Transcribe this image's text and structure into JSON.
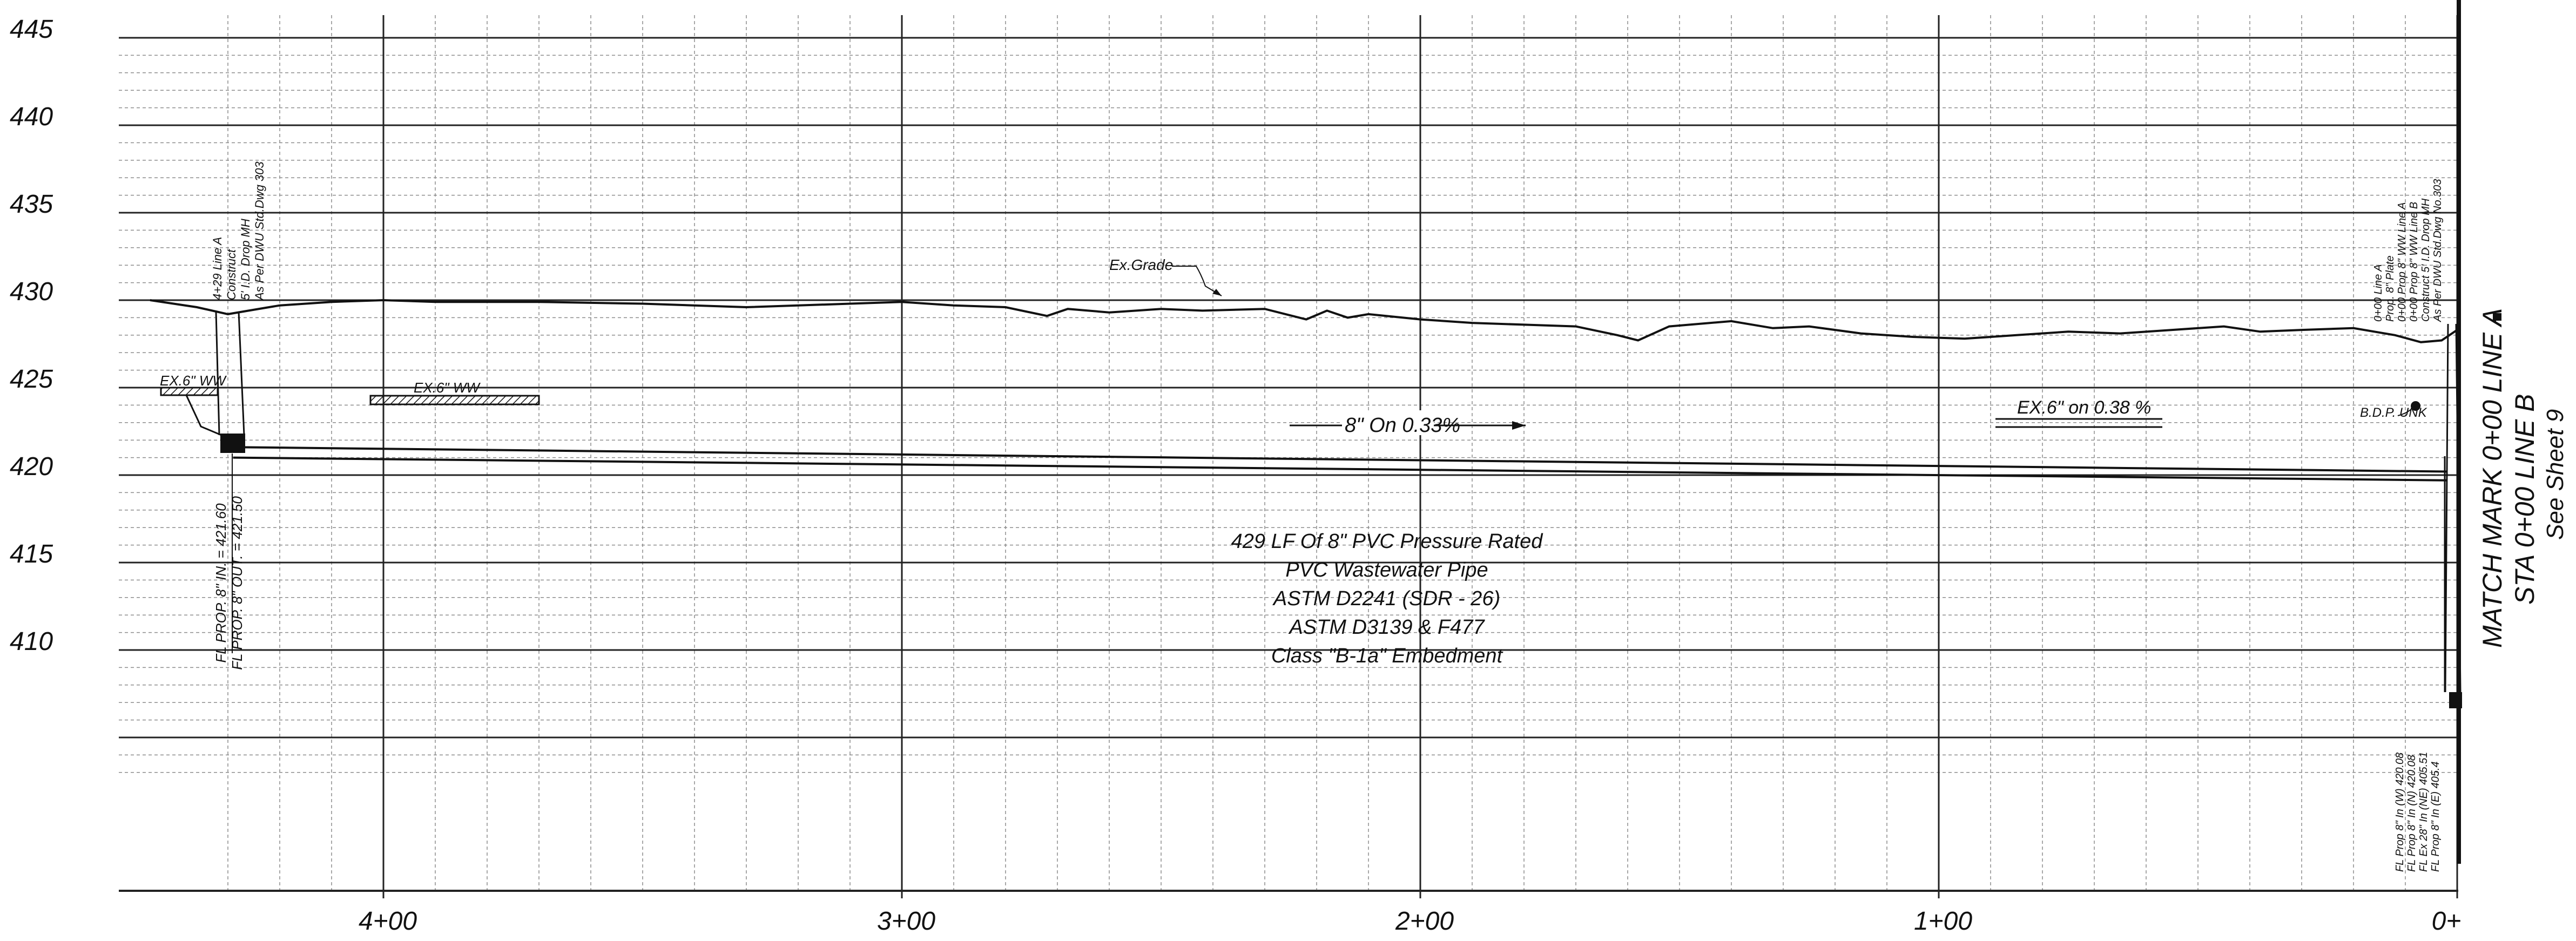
{
  "elevation_labels": [
    "445",
    "440",
    "435",
    "430",
    "425",
    "420",
    "415",
    "410"
  ],
  "station_labels": [
    "4+00",
    "3+00",
    "2+00",
    "1+00",
    "0+"
  ],
  "pipe_slope_label": "8\" On 0.33%",
  "existing_grade_label": "Ex.Grade",
  "existing_ww_labels": [
    "EX.6\" WW",
    "EX.6\" WW"
  ],
  "existing_pipe_label": "EX.6\" on 0.38 %",
  "bdp_label": "B.D.P.\nUNK",
  "pipe_note_lines": [
    "429 LF Of 8\" PVC Pressure Rated",
    "PVC Wastewater Pipe",
    "ASTM D2241 (SDR - 26)",
    "ASTM D3139 & F477",
    "Class \"B-1a\" Embedment"
  ],
  "left_callout_top": [
    "4+29 Line A",
    "Construct",
    "5' I.D. Drop MH",
    "As Per DWU Std.Dwg 303"
  ],
  "left_callout_bottom": [
    "FL PROP. 8\" IN. = 421.60",
    "FL PROP. 8\" OUT. = 421.50"
  ],
  "right_callout_top": [
    "0+00 Line A",
    "Prop. 8\" Plate",
    "0+00 Prop 8\" WW Line A",
    "0+00 Prop 8\" WW Line B",
    "Construct 5' I.D. Drop MH",
    "As Per DWU Std.Dwg No.303"
  ],
  "right_callout_bottom": [
    "FL Prop 8\" In (W) 420.08",
    "FL Prop 8\" In (N) 420.08",
    "FL Ex 28\" In (NE) 405.51",
    "FL Prop 8\" In (E) 405.4"
  ],
  "match_mark": [
    "MATCH MARK 0+00 LINE A",
    "STA 0+00 LINE B",
    "See Sheet 9"
  ],
  "colors": {
    "ink": "#111111",
    "grid_minor": "#8c8c8c",
    "grid_major": "#222222",
    "paper": "#ffffff"
  },
  "chart_data": {
    "type": "line",
    "xlabel": "",
    "ylabel": "",
    "xlim": [
      4.45,
      0
    ],
    "ylim": [
      403,
      445
    ],
    "series": [
      {
        "x": [
          4.45,
          4.36,
          4.3,
          4.26,
          4.2,
          4.1,
          4.0,
          3.9,
          3.7,
          3.5,
          3.3,
          3.1,
          3.0,
          2.9,
          2.8,
          2.72,
          2.68,
          2.6,
          2.5,
          2.42,
          2.3,
          2.22,
          2.18,
          2.14,
          2.1,
          2.0,
          1.9,
          1.8,
          1.7,
          1.62,
          1.58,
          1.52,
          1.4,
          1.32,
          1.25,
          1.15,
          1.05,
          0.95,
          0.85,
          0.75,
          0.65,
          0.55,
          0.45,
          0.38,
          0.3,
          0.2,
          0.12,
          0.07,
          0.03,
          0
        ],
        "y": [
          430,
          429.6,
          429.2,
          429.4,
          429.7,
          429.9,
          430.0,
          429.9,
          429.9,
          429.8,
          429.6,
          429.8,
          429.9,
          429.7,
          429.6,
          429.1,
          429.5,
          429.3,
          429.5,
          429.4,
          429.5,
          428.9,
          429.4,
          429.0,
          429.2,
          428.9,
          428.7,
          428.6,
          428.5,
          428.0,
          427.7,
          428.5,
          428.8,
          428.4,
          428.5,
          428.1,
          427.9,
          427.8,
          428.0,
          428.2,
          428.1,
          428.3,
          428.5,
          428.2,
          428.3,
          428.4,
          428.0,
          427.6,
          427.7,
          428.3
        ]
      },
      {
        "x": [
          4.29,
          0.02
        ],
        "y": [
          421.6,
          420.2
        ]
      },
      {
        "x": [
          4.29,
          0.02
        ],
        "y": [
          421.0,
          419.7
        ]
      }
    ]
  }
}
